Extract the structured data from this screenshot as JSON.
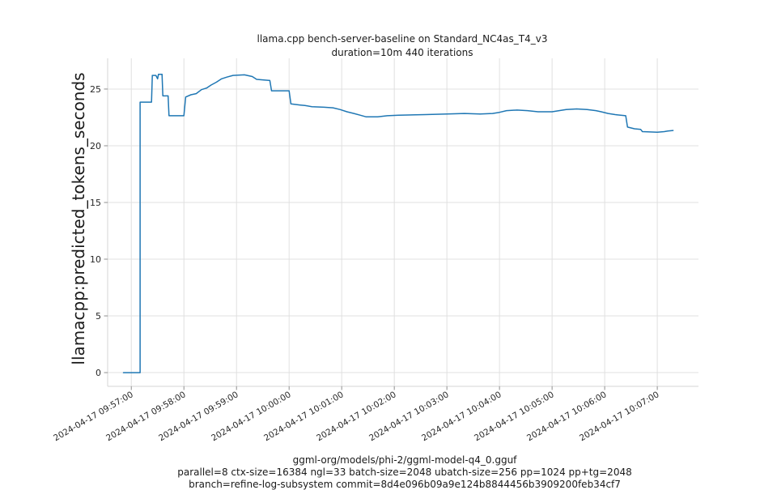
{
  "chart_data": {
    "type": "line",
    "title": "llama.cpp bench-server-baseline on Standard_NC4as_T4_v3",
    "subtitle": "duration=10m 440 iterations",
    "ylabel": "llamacpp:predicted_tokens_seconds",
    "xlabel": "",
    "footer_lines": [
      "ggml-org/models/phi-2/ggml-model-q4_0.gguf",
      "parallel=8 ctx-size=16384 ngl=33 batch-size=2048 ubatch-size=256 pp=1024 pp+tg=2048",
      "branch=refine-log-subsystem commit=8d4e096b09a9e124b8844456b3909200feb34cf7"
    ],
    "legend": "none",
    "grid": true,
    "x_tick_rotation_deg": 30,
    "x_domain_seconds": [
      33,
      707
    ],
    "y_domain": [
      -1.21,
      27.71
    ],
    "y_ticks": [
      0,
      5,
      10,
      15,
      20,
      25
    ],
    "x_ticks": [
      {
        "t": 60,
        "label": "2024-04-17 09:57:00"
      },
      {
        "t": 120,
        "label": "2024-04-17 09:58:00"
      },
      {
        "t": 180,
        "label": "2024-04-17 09:59:00"
      },
      {
        "t": 240,
        "label": "2024-04-17 10:00:00"
      },
      {
        "t": 300,
        "label": "2024-04-17 10:01:00"
      },
      {
        "t": 360,
        "label": "2024-04-17 10:02:00"
      },
      {
        "t": 420,
        "label": "2024-04-17 10:03:00"
      },
      {
        "t": 480,
        "label": "2024-04-17 10:04:00"
      },
      {
        "t": 540,
        "label": "2024-04-17 10:05:00"
      },
      {
        "t": 600,
        "label": "2024-04-17 10:06:00"
      },
      {
        "t": 660,
        "label": "2024-04-17 10:07:00"
      }
    ],
    "colors": {
      "line": "#1f77b4",
      "grid": "#e0e0e0",
      "spine": "#d4d4d4",
      "tick": "#8f8f8f",
      "text": "#262626"
    },
    "series": [
      {
        "name": "llamacpp:predicted_tokens_seconds",
        "points": [
          [
            51,
            0
          ],
          [
            70,
            0
          ],
          [
            70,
            23.85
          ],
          [
            83,
            23.85
          ],
          [
            84,
            26.2
          ],
          [
            88,
            26.2
          ],
          [
            90,
            25.9
          ],
          [
            91,
            26.3
          ],
          [
            95,
            26.3
          ],
          [
            96,
            24.4
          ],
          [
            102,
            24.4
          ],
          [
            103,
            22.65
          ],
          [
            120,
            22.65
          ],
          [
            122,
            24.3
          ],
          [
            128,
            24.5
          ],
          [
            134,
            24.6
          ],
          [
            140,
            24.95
          ],
          [
            146,
            25.1
          ],
          [
            151,
            25.35
          ],
          [
            157,
            25.6
          ],
          [
            163,
            25.9
          ],
          [
            169,
            26.05
          ],
          [
            176,
            26.2
          ],
          [
            189,
            26.25
          ],
          [
            198,
            26.1
          ],
          [
            203,
            25.85
          ],
          [
            218,
            25.75
          ],
          [
            220,
            24.85
          ],
          [
            240,
            24.85
          ],
          [
            242,
            23.7
          ],
          [
            252,
            23.6
          ],
          [
            258,
            23.55
          ],
          [
            266,
            23.45
          ],
          [
            280,
            23.4
          ],
          [
            290,
            23.35
          ],
          [
            298,
            23.2
          ],
          [
            306,
            23.0
          ],
          [
            314,
            22.85
          ],
          [
            321,
            22.7
          ],
          [
            328,
            22.55
          ],
          [
            341,
            22.55
          ],
          [
            352,
            22.65
          ],
          [
            365,
            22.7
          ],
          [
            395,
            22.75
          ],
          [
            420,
            22.8
          ],
          [
            440,
            22.85
          ],
          [
            458,
            22.8
          ],
          [
            472,
            22.85
          ],
          [
            480,
            22.95
          ],
          [
            488,
            23.1
          ],
          [
            500,
            23.15
          ],
          [
            512,
            23.1
          ],
          [
            524,
            23.0
          ],
          [
            540,
            23.0
          ],
          [
            548,
            23.1
          ],
          [
            556,
            23.2
          ],
          [
            568,
            23.25
          ],
          [
            580,
            23.2
          ],
          [
            590,
            23.1
          ],
          [
            596,
            23.0
          ],
          [
            604,
            22.85
          ],
          [
            612,
            22.75
          ],
          [
            624,
            22.65
          ],
          [
            626,
            21.65
          ],
          [
            634,
            21.5
          ],
          [
            641,
            21.45
          ],
          [
            643,
            21.25
          ],
          [
            660,
            21.2
          ],
          [
            668,
            21.25
          ],
          [
            672,
            21.3
          ],
          [
            678,
            21.35
          ]
        ]
      }
    ]
  }
}
